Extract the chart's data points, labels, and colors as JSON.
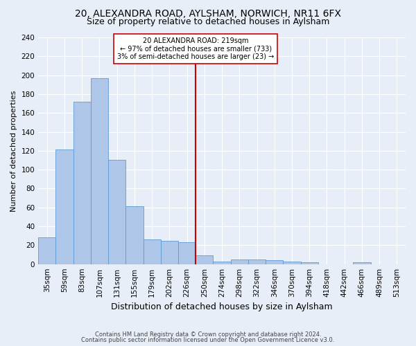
{
  "title1": "20, ALEXANDRA ROAD, AYLSHAM, NORWICH, NR11 6FX",
  "title2": "Size of property relative to detached houses in Aylsham",
  "xlabel": "Distribution of detached houses by size in Aylsham",
  "ylabel": "Number of detached properties",
  "bar_values": [
    28,
    121,
    172,
    197,
    110,
    61,
    26,
    25,
    23,
    9,
    3,
    5,
    5,
    4,
    3,
    2,
    0,
    0,
    2,
    0
  ],
  "bar_labels": [
    "35sqm",
    "59sqm",
    "83sqm",
    "107sqm",
    "131sqm",
    "155sqm",
    "179sqm",
    "202sqm",
    "226sqm",
    "250sqm",
    "274sqm",
    "298sqm",
    "322sqm",
    "346sqm",
    "370sqm",
    "394sqm",
    "418sqm",
    "442sqm",
    "466sqm",
    "489sqm",
    "513sqm"
  ],
  "bar_color": "#aec6e8",
  "bar_edge_color": "#5b9bd5",
  "vline_color": "#cc0000",
  "vline_x": 8.5,
  "annotation_text": "20 ALEXANDRA ROAD: 219sqm\n← 97% of detached houses are smaller (733)\n3% of semi-detached houses are larger (23) →",
  "annotation_box_color": "#ffffff",
  "annotation_box_edge": "#cc0000",
  "ylim": [
    0,
    240
  ],
  "yticks": [
    0,
    20,
    40,
    60,
    80,
    100,
    120,
    140,
    160,
    180,
    200,
    220,
    240
  ],
  "footer1": "Contains HM Land Registry data © Crown copyright and database right 2024.",
  "footer2": "Contains public sector information licensed under the Open Government Licence v3.0.",
  "bg_color": "#e8eef7",
  "grid_color": "#ffffff",
  "title1_fontsize": 10,
  "title2_fontsize": 9,
  "xlabel_fontsize": 9,
  "ylabel_fontsize": 8,
  "tick_fontsize": 7.5,
  "footer_fontsize": 6
}
